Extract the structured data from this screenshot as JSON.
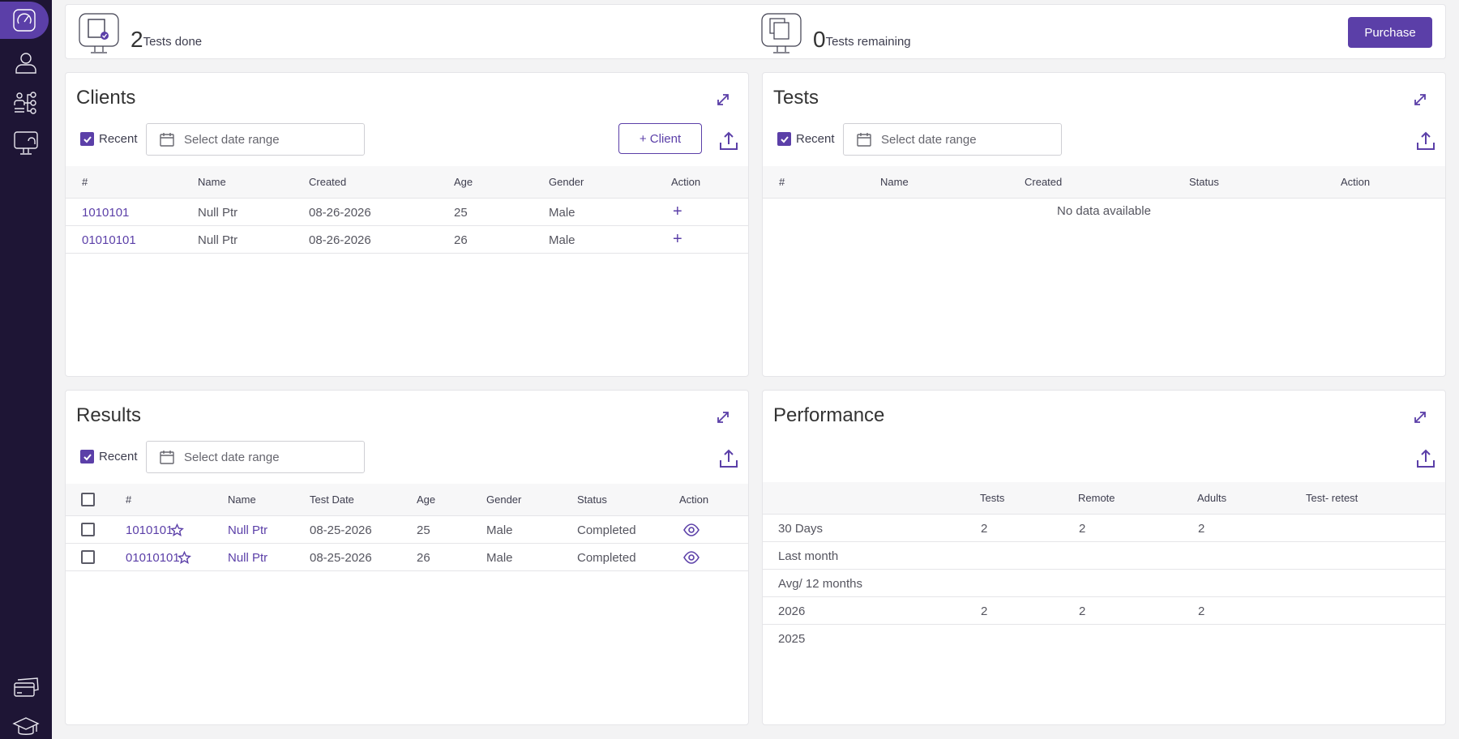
{
  "sidebar": {
    "items": [
      {
        "icon": "dashboard-icon"
      },
      {
        "icon": "user-icon"
      },
      {
        "icon": "hierarchy-icon"
      },
      {
        "icon": "monitor-test-icon"
      },
      {
        "icon": "credit-cards-icon"
      },
      {
        "icon": "graduation-cap-icon"
      }
    ]
  },
  "stats": {
    "done_count": "2",
    "done_label": "Tests done",
    "remaining_count": "0",
    "remaining_label": "Tests remaining",
    "purchase_label": "Purchase"
  },
  "clients": {
    "title": "Clients",
    "recent_label": "Recent",
    "date_placeholder": "Select date range",
    "add_label": "+ Client",
    "headers": [
      "#",
      "Name",
      "Created",
      "Age",
      "Gender",
      "Action"
    ],
    "rows": [
      {
        "id": "1010101",
        "name": "Null Ptr",
        "created": "08-26-2026",
        "age": "25",
        "gender": "Male",
        "action": "+"
      },
      {
        "id": "01010101",
        "name": "Null Ptr",
        "created": "08-26-2026",
        "age": "26",
        "gender": "Male",
        "action": "+"
      }
    ]
  },
  "tests": {
    "title": "Tests",
    "recent_label": "Recent",
    "date_placeholder": "Select date range",
    "headers": [
      "#",
      "Name",
      "Created",
      "Status",
      "Action"
    ],
    "empty_text": "No data available"
  },
  "results": {
    "title": "Results",
    "recent_label": "Recent",
    "date_placeholder": "Select date range",
    "headers": [
      "#",
      "Name",
      "Test Date",
      "Age",
      "Gender",
      "Status",
      "Action"
    ],
    "rows": [
      {
        "id": "1010101",
        "name": "Null Ptr",
        "date": "08-25-2026",
        "age": "25",
        "gender": "Male",
        "status": "Completed"
      },
      {
        "id": "01010101",
        "name": "Null Ptr",
        "date": "08-25-2026",
        "age": "26",
        "gender": "Male",
        "status": "Completed"
      }
    ]
  },
  "performance": {
    "title": "Performance",
    "headers": [
      "",
      "Tests",
      "Remote",
      "Adults",
      "Test- retest"
    ],
    "rows": [
      {
        "label": "30 Days",
        "tests": "2",
        "remote": "2",
        "adults": "2",
        "retest": ""
      },
      {
        "label": "Last month",
        "tests": "",
        "remote": "",
        "adults": "",
        "retest": ""
      },
      {
        "label": "Avg/ 12 months",
        "tests": "",
        "remote": "",
        "adults": "",
        "retest": ""
      },
      {
        "label": "2026",
        "tests": "2",
        "remote": "2",
        "adults": "2",
        "retest": ""
      },
      {
        "label": "2025",
        "tests": "",
        "remote": "",
        "adults": "",
        "retest": ""
      }
    ]
  },
  "colors": {
    "accent": "#5b3fa8",
    "sidebar_bg": "#1e1535"
  }
}
